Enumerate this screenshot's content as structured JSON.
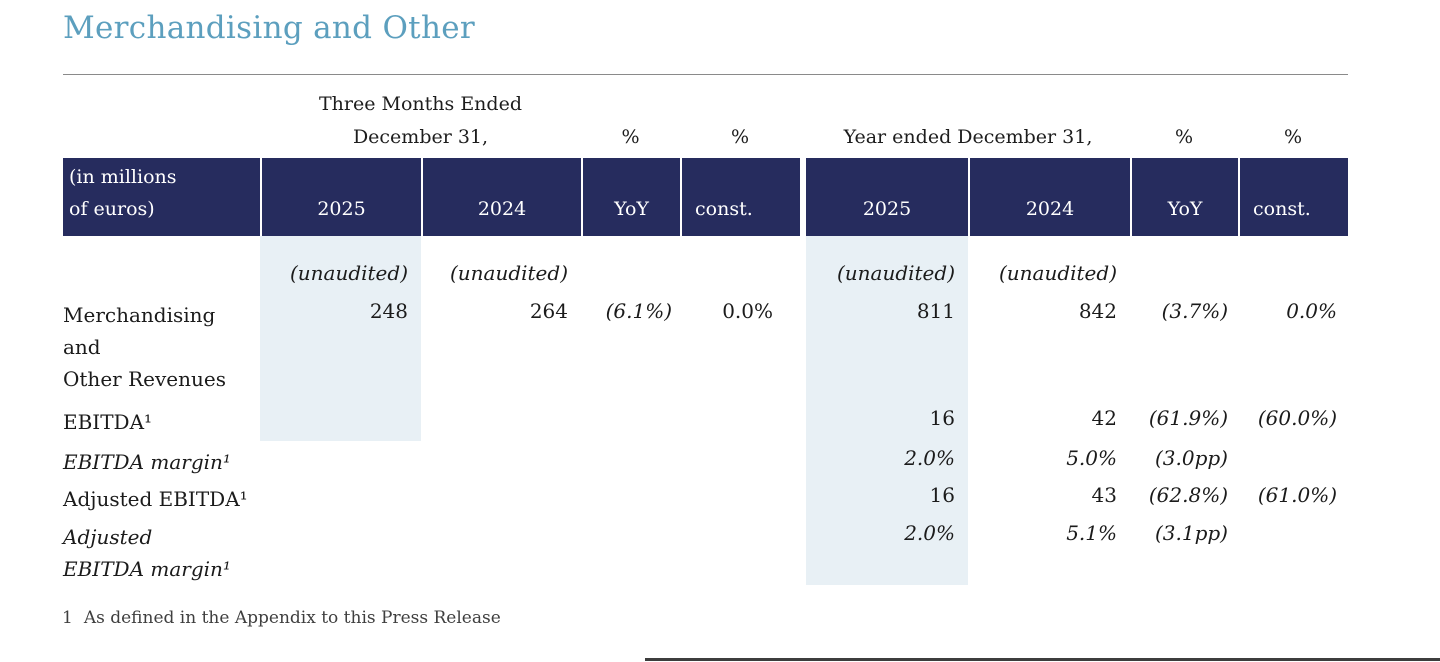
{
  "colors": {
    "header_navy": "#262C5E",
    "highlight_column": "#E8F0F5",
    "title_accent": "#5C9FBE",
    "rule_gray": "#8A8A8A"
  },
  "section": {
    "title": "Merchandising and Other"
  },
  "table": {
    "preheader": {
      "three_months": {
        "line1": "Three Months Ended",
        "line2": "December 31,"
      },
      "year_ended": "Year ended December 31,",
      "pct": "%"
    },
    "header": {
      "unit": {
        "line1": "(in millions",
        "line2": "of euros)"
      },
      "col_2025": "2025",
      "col_2024": "2024",
      "col_yoy": "YoY",
      "col_const": "const."
    },
    "rows": [
      {
        "q2025": "(unaudited)",
        "q2024": "(unaudited)",
        "fy2025": "(unaudited)",
        "fy2024": "(unaudited)"
      },
      {
        "label1": "Merchandising",
        "label2": "and",
        "label3": "Other Revenues",
        "q2025": "248",
        "q2024": "264",
        "q_yoy": "(6.1%)",
        "q_const": "0.0%",
        "fy2025": "811",
        "fy2024": "842",
        "fy_yoy": "(3.7%)",
        "fy_const": "0.0%"
      },
      {
        "label": "EBITDA¹",
        "fy2025": "16",
        "fy2024": "42",
        "fy_yoy": "(61.9%)",
        "fy_const": "(60.0%)"
      },
      {
        "label": "EBITDA margin¹",
        "fy2025": "2.0%",
        "fy2024": "5.0%",
        "fy_yoy": "(3.0pp)"
      },
      {
        "label": "Adjusted EBITDA¹",
        "fy2025": "16",
        "fy2024": "43",
        "fy_yoy": "(62.8%)",
        "fy_const": "(61.0%)"
      },
      {
        "label1": "Adjusted",
        "label2": "EBITDA margin¹",
        "fy2025": "2.0%",
        "fy2024": "5.1%",
        "fy_yoy": "(3.1pp)"
      }
    ]
  },
  "footnote": {
    "marker": "1",
    "text": "As defined in the Appendix to this Press Release"
  }
}
